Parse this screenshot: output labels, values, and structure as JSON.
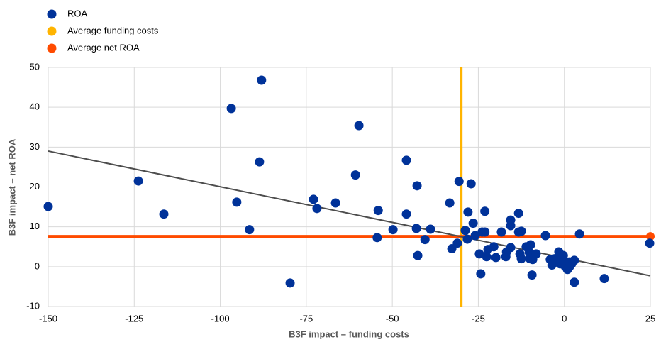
{
  "chart_data": {
    "type": "scatter",
    "x_label": "B3F impact – funding costs",
    "y_label": "B3F impact – net ROA",
    "xlim": [
      -150,
      25
    ],
    "ylim": [
      -10,
      50
    ],
    "xticks": [
      -150,
      -125,
      -100,
      -75,
      -50,
      -25,
      0,
      25
    ],
    "yticks": [
      -10,
      0,
      10,
      20,
      30,
      40,
      50
    ],
    "grid": true,
    "legend": "top-left",
    "series": [
      {
        "name": "ROA",
        "color": "#003299",
        "mode": "markers",
        "x": [
          -150,
          -123.8,
          -116.4,
          -96.8,
          -88,
          -95.2,
          -88.6,
          -91.5,
          -79.7,
          -72.9,
          -71.9,
          -66.5,
          -60.7,
          -59.7,
          -54.1,
          -54.4,
          -49.8,
          -45.9,
          -45.9,
          -42.8,
          -43,
          -42.6,
          -40.5,
          -38.9,
          -33.3,
          -32.7,
          -31.1,
          -30.6,
          -28.8,
          -28.2,
          -28,
          -27.1,
          -26.5,
          -25.9,
          -24.7,
          -24.3,
          -23.9,
          -23.1,
          -23.1,
          -22.6,
          -22.2,
          -20.5,
          -19.9,
          -18.3,
          -17,
          -16.8,
          -15.6,
          -15.6,
          -15.6,
          -13.3,
          -13.3,
          -12.5,
          -12.9,
          -12.5,
          -11.1,
          -10.2,
          -9.8,
          -10,
          -9.2,
          -9.4,
          -8.2,
          -5.5,
          -4.1,
          -3.6,
          -2.8,
          -1.6,
          -1.2,
          -1.2,
          -0.3,
          0.1,
          0.3,
          0.9,
          1.5,
          1.5,
          2.1,
          2.9,
          2.9,
          4.4,
          11.6,
          24.8
        ],
        "values": [
          15.1,
          21.5,
          13.2,
          39.7,
          46.8,
          16.2,
          26.3,
          9.3,
          -4.1,
          16.9,
          14.6,
          16,
          23,
          35.4,
          14.1,
          7.3,
          9.3,
          26.7,
          13.2,
          20.3,
          9.6,
          2.8,
          6.8,
          9.4,
          16,
          4.5,
          5.9,
          21.4,
          9.1,
          6.9,
          13.7,
          20.8,
          10.9,
          7.8,
          3.2,
          -1.8,
          8.7,
          13.9,
          8.7,
          2.5,
          4.3,
          5,
          2.3,
          8.7,
          2.5,
          3.7,
          11.7,
          10.3,
          4.8,
          13.4,
          8.7,
          8.9,
          3.2,
          2,
          5,
          3.6,
          5.5,
          2,
          1.8,
          -2.1,
          3.2,
          7.8,
          1.8,
          0.4,
          2,
          3.7,
          2.1,
          0.7,
          2.8,
          1.4,
          0,
          -0.7,
          0,
          1.2,
          0.7,
          1.6,
          -3.9,
          8.2,
          -3,
          5.9
        ]
      },
      {
        "name": "Average funding costs",
        "color": "#ffb400",
        "mode": "line",
        "x": [
          -30,
          -30
        ],
        "values": [
          -10,
          50
        ]
      },
      {
        "name": "Average net ROA",
        "color": "#ff4b00",
        "mode": "line",
        "x": [
          -150,
          25
        ],
        "values": [
          7.6,
          7.6
        ]
      }
    ],
    "trendline": {
      "color": "#4d4d4d",
      "x": [
        -150,
        25
      ],
      "values": [
        29,
        -2.3
      ]
    }
  }
}
